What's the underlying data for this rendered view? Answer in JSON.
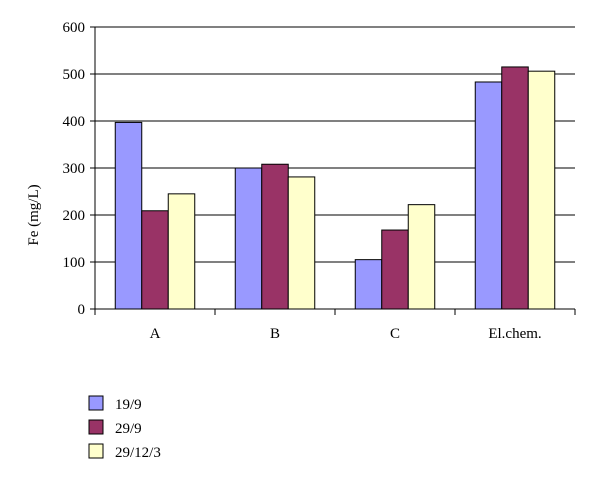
{
  "chart_data": {
    "type": "bar",
    "title": "",
    "xlabel": "",
    "ylabel": "Fe (mg/L)",
    "ylim": [
      0,
      600
    ],
    "yticks": [
      0,
      100,
      200,
      300,
      400,
      500,
      600
    ],
    "categories": [
      "A",
      "B",
      "C",
      "El.chem."
    ],
    "grid": "horizontal",
    "legend_position": "bottom-left",
    "series": [
      {
        "name": "19/9",
        "color": "#9999ff",
        "values": [
          397,
          300,
          105,
          483
        ]
      },
      {
        "name": "29/9",
        "color": "#993366",
        "values": [
          209,
          308,
          168,
          515
        ]
      },
      {
        "name": "29/12/3",
        "color": "#ffffcc",
        "values": [
          245,
          281,
          222,
          506
        ]
      }
    ]
  }
}
